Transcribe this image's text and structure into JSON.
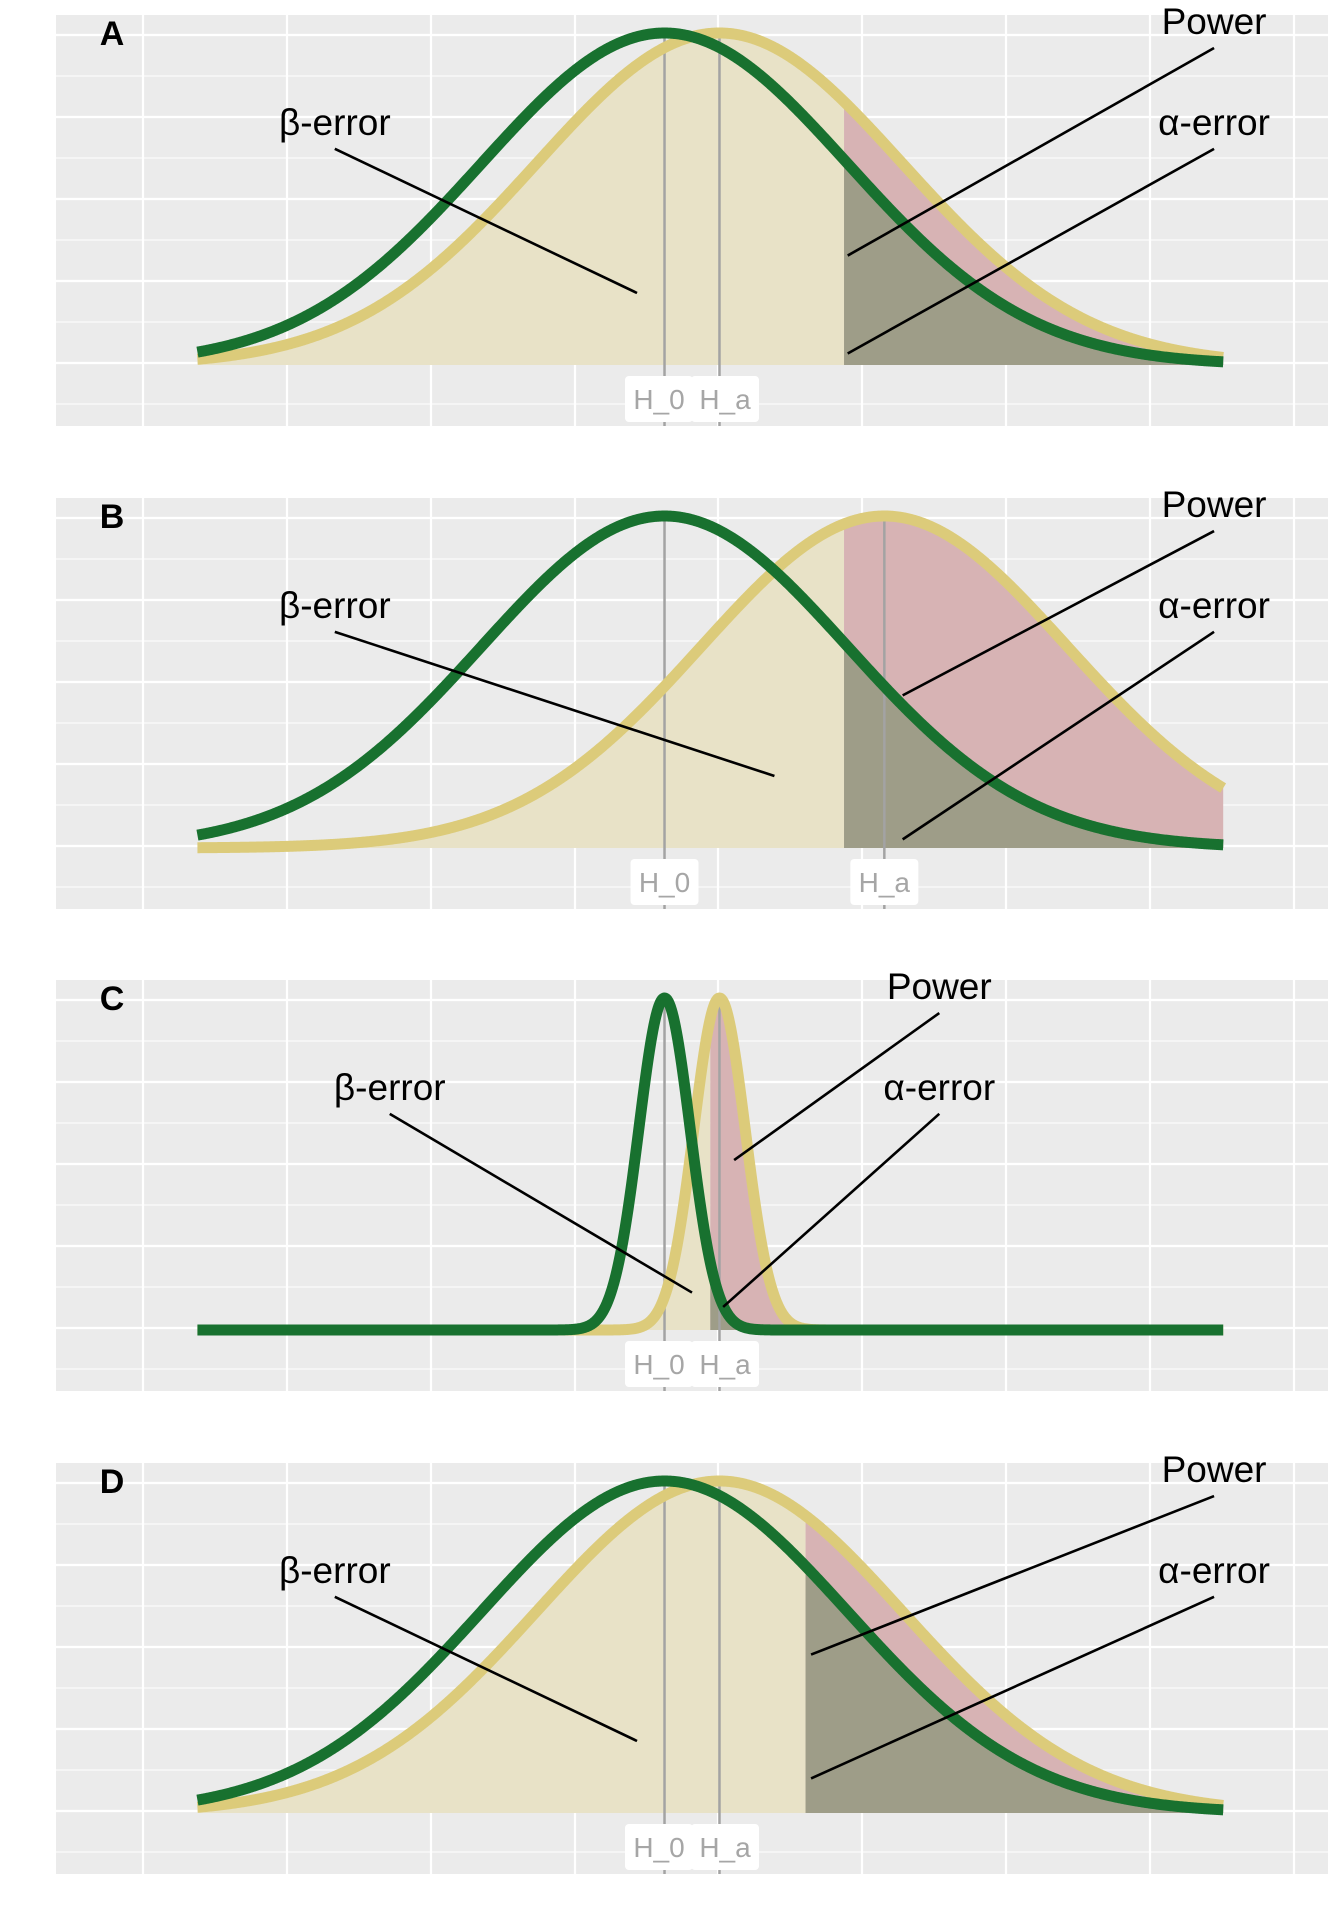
{
  "colors": {
    "panel_bg": "#ebebeb",
    "grid": "#ffffff",
    "h0_curve": "#18712f",
    "ha_curve": "#dccb7a",
    "ha_fill": "#e8e2c7",
    "power_fill": "#d7b3b4",
    "alpha_fill": "#9e9d88",
    "ref_line": "#a3a3a3",
    "label_box": "#ffffff",
    "label_text": "#a6a6a6",
    "annotation": "#000000"
  },
  "chart_data": [
    {
      "type": "line",
      "panel": "A",
      "label": "A",
      "xlim": [
        -3.0,
        3.3
      ],
      "series": [
        {
          "mean": 0.0,
          "sd": 1.0
        },
        {
          "mean": 0.3,
          "sd": 1.0
        }
      ],
      "critical_value": 0.98,
      "ticks": [
        {
          "label": "H_0",
          "x": 0.0
        },
        {
          "label": "H_a",
          "x": 0.3
        }
      ],
      "annotations": [
        {
          "text": "β-error",
          "label_x": -1.8,
          "label_y": 0.82,
          "target_x": -0.15,
          "target_y": 0.25
        },
        {
          "text": "Power",
          "label_x": 3.0,
          "label_y": 1.17,
          "target_x": 1.0,
          "target_y": 0.38
        },
        {
          "text": "α-error",
          "label_x": 3.0,
          "label_y": 0.82,
          "target_x": 1.0,
          "target_y": 0.04
        }
      ]
    },
    {
      "type": "line",
      "panel": "B",
      "label": "B",
      "xlim": [
        -3.0,
        3.3
      ],
      "series": [
        {
          "mean": 0.0,
          "sd": 1.0
        },
        {
          "mean": 1.2,
          "sd": 1.0
        }
      ],
      "critical_value": 0.98,
      "ticks": [
        {
          "label": "H_0",
          "x": 0.0
        },
        {
          "label": "H_a",
          "x": 1.2
        }
      ],
      "annotations": [
        {
          "text": "β-error",
          "label_x": -1.8,
          "label_y": 0.82,
          "target_x": 0.6,
          "target_y": 0.25
        },
        {
          "text": "Power",
          "label_x": 3.0,
          "label_y": 1.17,
          "target_x": 1.3,
          "target_y": 0.53
        },
        {
          "text": "α-error",
          "label_x": 3.0,
          "label_y": 0.82,
          "target_x": 1.3,
          "target_y": 0.03
        }
      ]
    },
    {
      "type": "line",
      "panel": "C",
      "label": "C",
      "xlim": [
        -3.0,
        3.3
      ],
      "series": [
        {
          "mean": 0.0,
          "sd": 0.14
        },
        {
          "mean": 0.3,
          "sd": 0.14
        }
      ],
      "critical_value": 0.25,
      "ticks": [
        {
          "label": "H_0",
          "x": 0.0
        },
        {
          "label": "H_a",
          "x": 0.3
        }
      ],
      "annotations": [
        {
          "text": "β-error",
          "label_x": -1.5,
          "label_y": 0.82,
          "target_x": 0.15,
          "target_y": 0.13
        },
        {
          "text": "Power",
          "label_x": 1.5,
          "label_y": 1.17,
          "target_x": 0.38,
          "target_y": 0.59
        },
        {
          "text": "α-error",
          "label_x": 1.5,
          "label_y": 0.82,
          "target_x": 0.32,
          "target_y": 0.08
        }
      ]
    },
    {
      "type": "line",
      "panel": "D",
      "label": "D",
      "xlim": [
        -3.0,
        3.3
      ],
      "series": [
        {
          "mean": 0.0,
          "sd": 1.0
        },
        {
          "mean": 0.3,
          "sd": 1.0
        }
      ],
      "critical_value": 0.77,
      "ticks": [
        {
          "label": "H_0",
          "x": 0.0
        },
        {
          "label": "H_a",
          "x": 0.3
        }
      ],
      "annotations": [
        {
          "text": "β-error",
          "label_x": -1.8,
          "label_y": 0.82,
          "target_x": -0.15,
          "target_y": 0.25
        },
        {
          "text": "Power",
          "label_x": 3.0,
          "label_y": 1.17,
          "target_x": 0.8,
          "target_y": 0.55
        },
        {
          "text": "α-error",
          "label_x": 3.0,
          "label_y": 0.82,
          "target_x": 0.8,
          "target_y": 0.12
        }
      ]
    }
  ]
}
